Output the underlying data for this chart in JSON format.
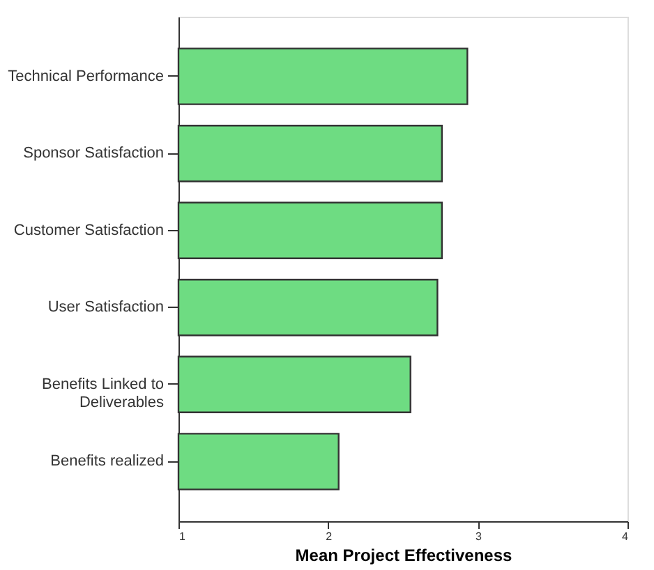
{
  "chart_data": {
    "type": "bar",
    "orientation": "horizontal",
    "xlabel": "Mean Project Effectiveness",
    "categories": [
      "Technical Performance",
      "Sponsor Satisfaction",
      "Customer Satisfaction",
      "User Satisfaction",
      "Benefits Linked to\nDeliverables",
      "Benefits realized"
    ],
    "values": [
      2.93,
      2.76,
      2.76,
      2.73,
      2.55,
      2.07
    ],
    "color": "#6edc82",
    "xlim": [
      1,
      4
    ],
    "xticks": [
      1,
      2,
      3,
      4
    ],
    "grid": false
  }
}
